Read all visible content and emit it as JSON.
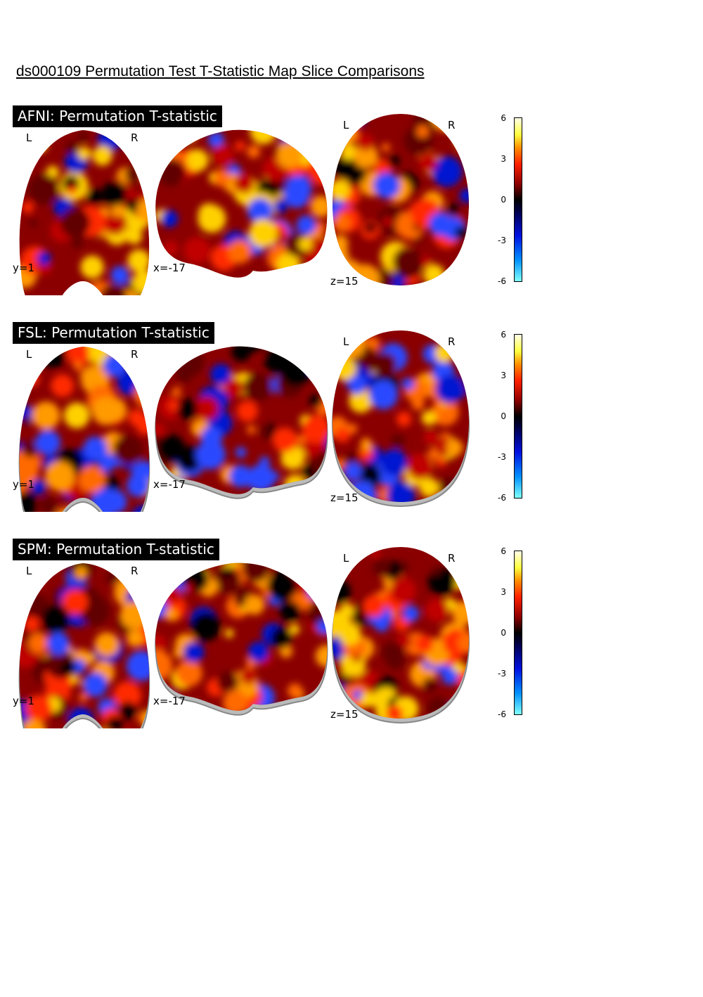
{
  "title": "ds000109 Permutation Test T-Statistic Map Slice Comparisons",
  "panels": [
    {
      "label": "AFNI: Permutation T-statistic",
      "coronal": {
        "left": "L",
        "right": "R",
        "coord": "y=1"
      },
      "sagittal": {
        "coord": "x=-17"
      },
      "axial": {
        "left": "L",
        "right": "R",
        "coord": "z=15"
      },
      "colorbar": {
        "ticks": [
          6,
          3,
          0,
          -3,
          -6
        ]
      }
    },
    {
      "label": "FSL: Permutation T-statistic",
      "coronal": {
        "left": "L",
        "right": "R",
        "coord": "y=1"
      },
      "sagittal": {
        "coord": "x=-17"
      },
      "axial": {
        "left": "L",
        "right": "R",
        "coord": "z=15"
      },
      "colorbar": {
        "ticks": [
          6,
          3,
          0,
          -3,
          -6
        ]
      }
    },
    {
      "label": "SPM: Permutation T-statistic",
      "coronal": {
        "left": "L",
        "right": "R",
        "coord": "y=1"
      },
      "sagittal": {
        "coord": "x=-17"
      },
      "axial": {
        "left": "L",
        "right": "R",
        "coord": "z=15"
      },
      "colorbar": {
        "ticks": [
          6,
          3,
          0,
          -3,
          -6
        ]
      }
    }
  ]
}
